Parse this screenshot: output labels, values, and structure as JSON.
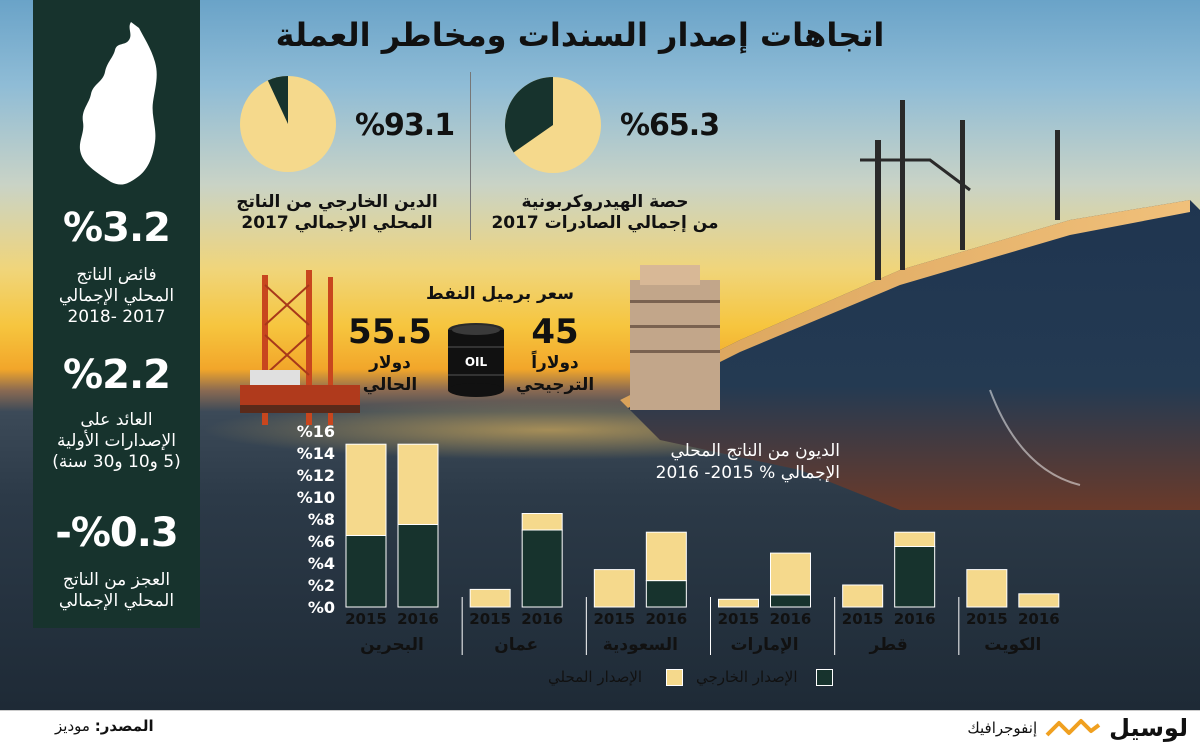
{
  "title": "اتجاهات إصدار السندات ومخاطر العملة",
  "left_panel": {
    "stats": [
      {
        "value": "%3.2",
        "label_lines": [
          "فائض الناتج",
          "المحلي الإجمالي",
          "2017 -2018"
        ]
      },
      {
        "value": "%2.2",
        "label_lines": [
          "العائد على",
          "الإصدارات الأولية",
          "(5 و10 و30 سنة)"
        ]
      },
      {
        "value": "-%0.3",
        "label_lines": [
          "العجز من الناتج",
          "المحلي الإجمالي"
        ]
      }
    ]
  },
  "pies": [
    {
      "pct_text": "%65.3",
      "fraction": 0.653,
      "caption_lines": [
        "حصة الهيدروكربونية",
        "من إجمالي الصادرات 2017"
      ]
    },
    {
      "pct_text": "%93.1",
      "fraction": 0.931,
      "caption_lines": [
        "الدين الخارجي من الناتج",
        "المحلي الإجمالي 2017"
      ]
    }
  ],
  "oil": {
    "title": "سعر برميل النفط",
    "current": {
      "value": "55.5",
      "unit": "دولار",
      "label": "الحالي"
    },
    "preferred": {
      "value": "45",
      "unit": "دولاراً",
      "label": "الترجيحي"
    },
    "barrel_text": "OIL"
  },
  "colors": {
    "domestic": "#f5d98c",
    "external": "#17332d",
    "panel": "#17332d"
  },
  "chart_data": {
    "type": "bar",
    "stacked": true,
    "title_lines": [
      "الديون من الناتج المحلي",
      "الإجمالي %  2015- 2016"
    ],
    "y_ticks": [
      "%0",
      "%2",
      "%4",
      "%6",
      "%8",
      "%10",
      "%12",
      "%14",
      "%16"
    ],
    "ylim": [
      0,
      16
    ],
    "countries": [
      {
        "name": "البحرين",
        "bars": [
          {
            "year": "2015",
            "external": 6.5,
            "domestic": 8.3
          },
          {
            "year": "2016",
            "external": 7.5,
            "domestic": 7.3
          }
        ]
      },
      {
        "name": "عمان",
        "bars": [
          {
            "year": "2015",
            "external": 0.0,
            "domestic": 1.6
          },
          {
            "year": "2016",
            "external": 7.0,
            "domestic": 1.5
          }
        ]
      },
      {
        "name": "السعودية",
        "bars": [
          {
            "year": "2015",
            "external": 0.0,
            "domestic": 3.4
          },
          {
            "year": "2016",
            "external": 2.4,
            "domestic": 4.4
          }
        ]
      },
      {
        "name": "الإمارات",
        "bars": [
          {
            "year": "2015",
            "external": 0.0,
            "domestic": 0.7
          },
          {
            "year": "2016",
            "external": 1.1,
            "domestic": 3.8
          }
        ]
      },
      {
        "name": "قطر",
        "bars": [
          {
            "year": "2015",
            "external": 0.0,
            "domestic": 2.0
          },
          {
            "year": "2016",
            "external": 5.5,
            "domestic": 1.3
          }
        ]
      },
      {
        "name": "الكويت",
        "bars": [
          {
            "year": "2015",
            "external": 0.0,
            "domestic": 3.4
          },
          {
            "year": "2016",
            "external": 0.0,
            "domestic": 1.2
          }
        ]
      }
    ],
    "legend": {
      "external": "الإصدار الخارجي",
      "domestic": "الإصدار المحلي"
    }
  },
  "footer": {
    "source_label": "المصدر:",
    "source_value": "موديز",
    "brand": "لوسيل",
    "brand_sub": "إنفوجرافيك"
  }
}
